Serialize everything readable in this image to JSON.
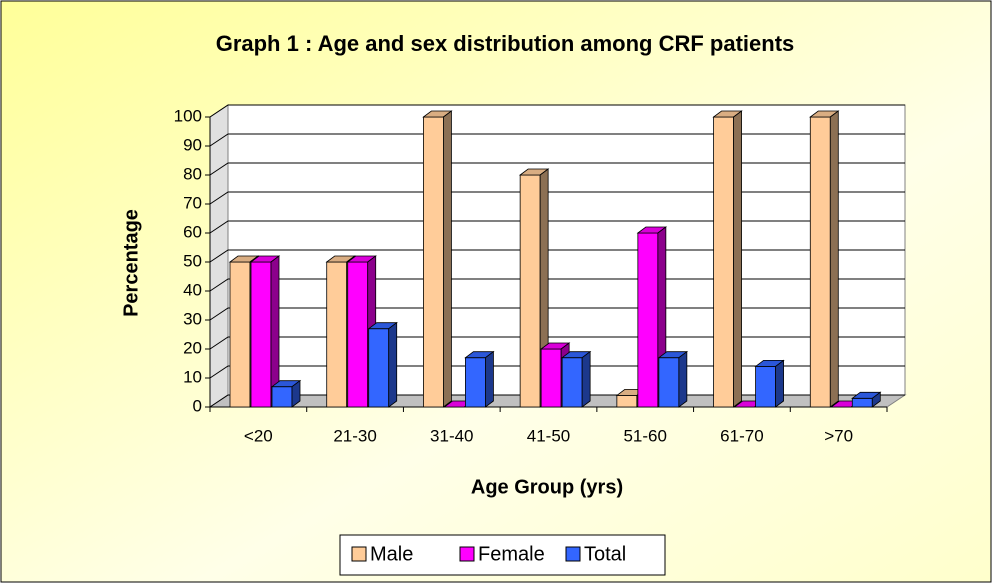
{
  "chart_data": {
    "type": "bar3d",
    "title": "Graph 1 : Age and sex distribution among CRF patients",
    "x_label": "Age Group (yrs)",
    "y_label": "Percentage",
    "categories": [
      "<20",
      "21-30",
      "31-40",
      "41-50",
      "51-60",
      "61-70",
      ">70"
    ],
    "series": [
      {
        "name": "Male",
        "color": "#FFCC99",
        "values": [
          50,
          50,
          100,
          80,
          4,
          100,
          100
        ]
      },
      {
        "name": "Female",
        "color": "#FF00FF",
        "values": [
          50,
          50,
          0,
          20,
          60,
          0,
          0
        ]
      },
      {
        "name": "Total",
        "color": "#3366FF",
        "values": [
          7,
          27,
          17,
          17,
          17,
          14,
          3
        ]
      }
    ],
    "ylim": [
      0,
      100
    ],
    "yticks": [
      0,
      10,
      20,
      30,
      40,
      50,
      60,
      70,
      80,
      90,
      100
    ],
    "grid": true,
    "legend": "bottom"
  }
}
